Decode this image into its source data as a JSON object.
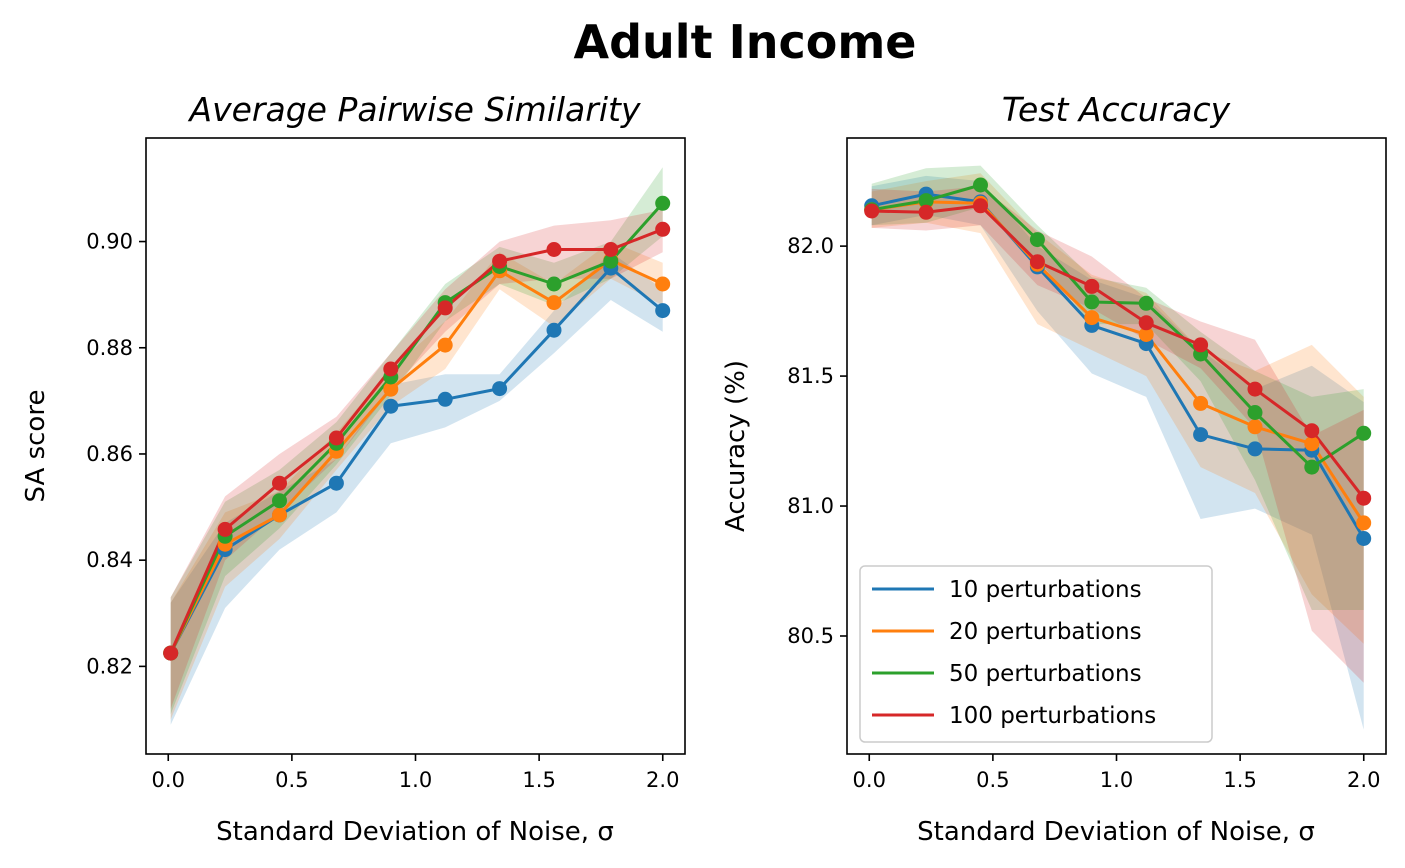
{
  "figure": {
    "suptitle": "Adult Income",
    "colors": [
      "#1f77b4",
      "#ff7f0e",
      "#2ca02c",
      "#d62728"
    ]
  },
  "chart_data": [
    {
      "type": "line",
      "title": "Average Pairwise Similarity",
      "xlabel": "Standard Deviation of Noise, σ",
      "ylabel": "SA score",
      "xlim": [
        -0.09,
        2.09
      ],
      "ylim": [
        0.8035,
        0.9195
      ],
      "xticks": [
        0.0,
        0.5,
        1.0,
        1.5,
        2.0
      ],
      "xtick_labels": [
        "0.0",
        "0.5",
        "1.0",
        "1.5",
        "2.0"
      ],
      "yticks": [
        0.82,
        0.84,
        0.86,
        0.88,
        0.9
      ],
      "ytick_labels": [
        "0.82",
        "0.84",
        "0.86",
        "0.88",
        "0.90"
      ],
      "legend": false,
      "x": [
        0.01,
        0.23,
        0.45,
        0.68,
        0.9,
        1.12,
        1.34,
        1.56,
        1.79,
        2.0
      ],
      "series": [
        {
          "name": "10 perturbations",
          "color": "#1f77b4",
          "values": [
            0.8225,
            0.842,
            0.8485,
            0.8545,
            0.869,
            0.8703,
            0.8723,
            0.8833,
            0.895,
            0.887
          ],
          "lower": [
            0.809,
            0.831,
            0.842,
            0.849,
            0.862,
            0.865,
            0.87,
            0.879,
            0.889,
            0.883
          ],
          "upper": [
            0.832,
            0.847,
            0.853,
            0.859,
            0.873,
            0.875,
            0.875,
            0.887,
            0.898,
            0.891
          ]
        },
        {
          "name": "20 perturbations",
          "color": "#ff7f0e",
          "values": [
            0.8225,
            0.843,
            0.8485,
            0.8605,
            0.8722,
            0.8805,
            0.8945,
            0.8885,
            0.8965,
            0.892
          ],
          "lower": [
            0.81,
            0.835,
            0.844,
            0.857,
            0.869,
            0.876,
            0.891,
            0.884,
            0.893,
            0.888
          ],
          "upper": [
            0.832,
            0.849,
            0.853,
            0.864,
            0.876,
            0.885,
            0.898,
            0.892,
            0.9,
            0.896
          ]
        },
        {
          "name": "50 perturbations",
          "color": "#2ca02c",
          "values": [
            0.8225,
            0.8445,
            0.8512,
            0.862,
            0.8745,
            0.8885,
            0.8953,
            0.892,
            0.8963,
            0.9072
          ],
          "lower": [
            0.811,
            0.837,
            0.846,
            0.858,
            0.871,
            0.885,
            0.892,
            0.888,
            0.893,
            0.901
          ],
          "upper": [
            0.833,
            0.851,
            0.857,
            0.866,
            0.879,
            0.892,
            0.899,
            0.896,
            0.9,
            0.914
          ]
        },
        {
          "name": "100 perturbations",
          "color": "#d62728",
          "values": [
            0.8225,
            0.8458,
            0.8545,
            0.863,
            0.876,
            0.8875,
            0.8963,
            0.8985,
            0.8985,
            0.9023
          ],
          "lower": [
            0.812,
            0.84,
            0.849,
            0.859,
            0.872,
            0.883,
            0.892,
            0.893,
            0.893,
            0.898
          ],
          "upper": [
            0.833,
            0.852,
            0.86,
            0.867,
            0.879,
            0.891,
            0.9,
            0.903,
            0.904,
            0.906
          ]
        }
      ]
    },
    {
      "type": "line",
      "title": "Test Accuracy",
      "xlabel": "Standard Deviation of Noise, σ",
      "ylabel": "Accuracy (%)",
      "xlim": [
        -0.09,
        2.09
      ],
      "ylim": [
        80.046,
        82.416
      ],
      "xticks": [
        0.0,
        0.5,
        1.0,
        1.5,
        2.0
      ],
      "xtick_labels": [
        "0.0",
        "0.5",
        "1.0",
        "1.5",
        "2.0"
      ],
      "yticks": [
        80.5,
        81.0,
        81.5,
        82.0
      ],
      "ytick_labels": [
        "80.5",
        "81.0",
        "81.5",
        "82.0"
      ],
      "legend": true,
      "legend_position": "lower-left",
      "x": [
        0.01,
        0.23,
        0.45,
        0.68,
        0.9,
        1.12,
        1.34,
        1.56,
        1.79,
        2.0
      ],
      "series": [
        {
          "name": "10 perturbations",
          "color": "#1f77b4",
          "values": [
            82.155,
            82.2,
            82.17,
            81.92,
            81.695,
            81.625,
            81.275,
            81.22,
            81.215,
            80.875
          ],
          "lower": [
            82.08,
            82.12,
            82.08,
            81.75,
            81.51,
            81.42,
            80.95,
            80.99,
            80.89,
            80.14
          ],
          "upper": [
            82.23,
            82.27,
            82.25,
            82.0,
            81.87,
            81.8,
            81.6,
            81.45,
            81.54,
            81.4
          ]
        },
        {
          "name": "20 perturbations",
          "color": "#ff7f0e",
          "values": [
            82.14,
            82.17,
            82.165,
            81.93,
            81.725,
            81.66,
            81.395,
            81.305,
            81.24,
            80.935
          ],
          "lower": [
            82.07,
            82.09,
            82.05,
            81.7,
            81.6,
            81.5,
            81.15,
            81.05,
            80.66,
            80.47
          ],
          "upper": [
            82.21,
            82.25,
            82.28,
            82.05,
            81.89,
            81.82,
            81.6,
            81.52,
            81.62,
            81.42
          ]
        },
        {
          "name": "50 perturbations",
          "color": "#2ca02c",
          "values": [
            82.14,
            82.175,
            82.235,
            82.025,
            81.785,
            81.78,
            81.585,
            81.36,
            81.15,
            81.28
          ],
          "lower": [
            82.08,
            82.09,
            82.15,
            81.95,
            81.7,
            81.7,
            81.48,
            81.1,
            80.6,
            80.6
          ],
          "upper": [
            82.24,
            82.3,
            82.31,
            82.08,
            81.88,
            81.84,
            81.67,
            81.52,
            81.42,
            81.45
          ]
        },
        {
          "name": "100 perturbations",
          "color": "#d62728",
          "values": [
            82.135,
            82.13,
            82.155,
            81.94,
            81.845,
            81.705,
            81.62,
            81.45,
            81.29,
            81.03
          ],
          "lower": [
            82.07,
            82.06,
            82.08,
            81.85,
            81.76,
            81.64,
            81.53,
            81.3,
            80.52,
            80.32
          ],
          "upper": [
            82.22,
            82.21,
            82.23,
            82.06,
            81.96,
            81.8,
            81.71,
            81.64,
            81.27,
            81.37
          ]
        }
      ]
    }
  ]
}
